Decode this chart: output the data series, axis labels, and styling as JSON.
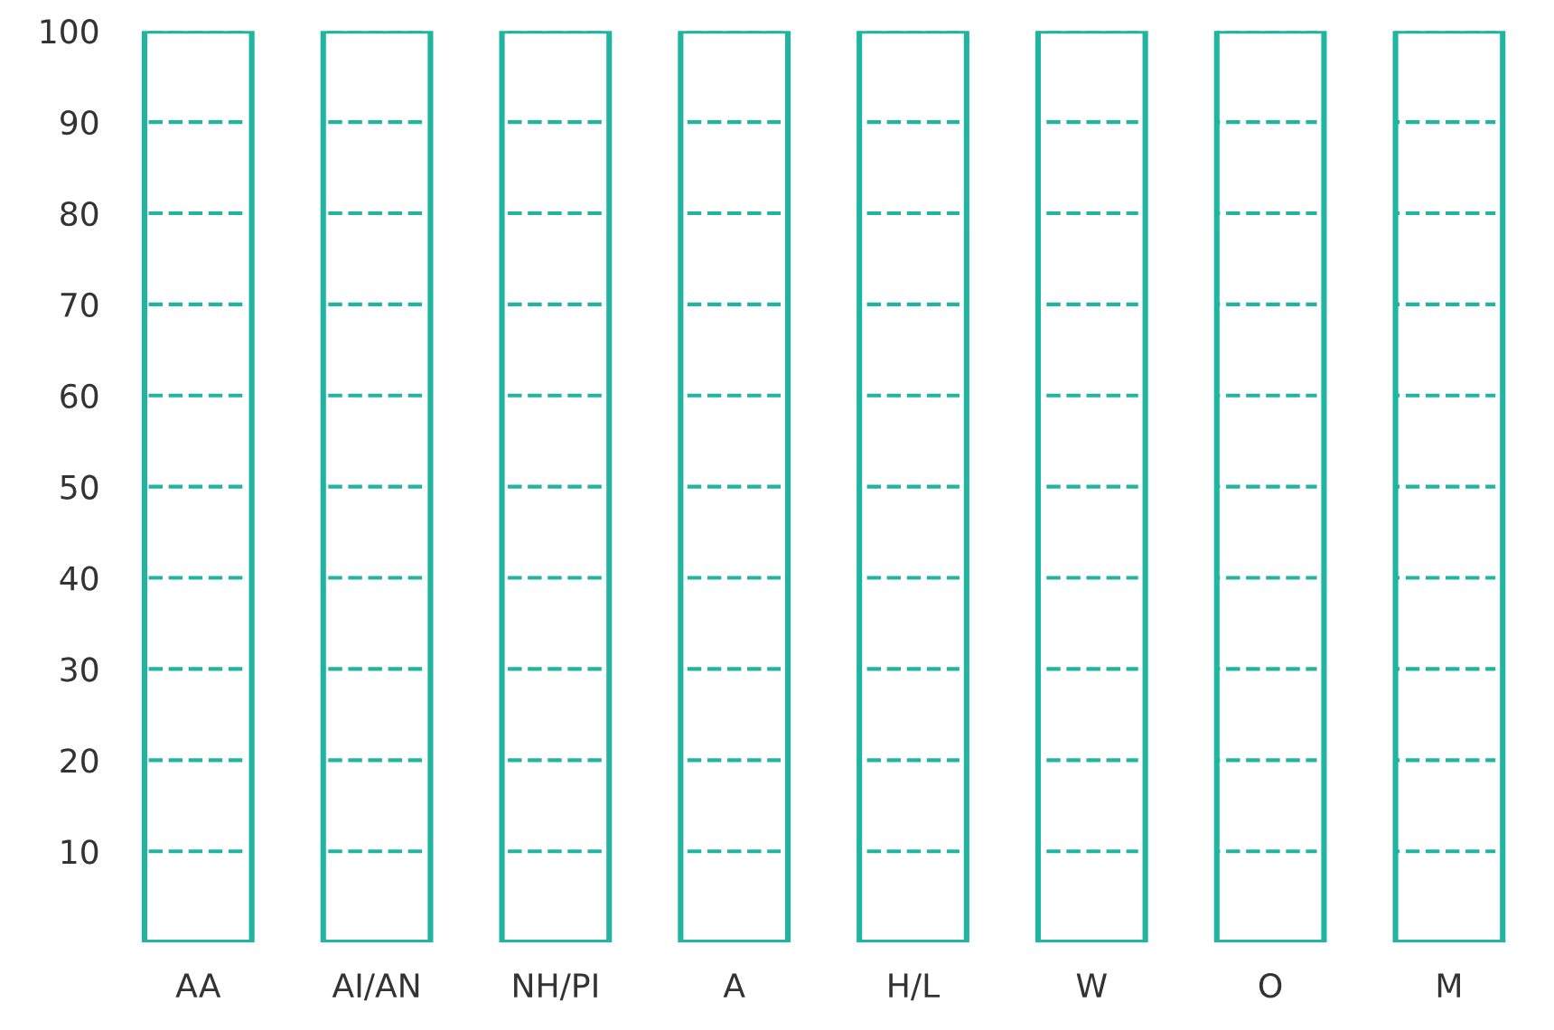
{
  "chart_data": {
    "type": "bar",
    "categories": [
      "AA",
      "AI/AN",
      "NH/PI",
      "A",
      "H/L",
      "W",
      "O",
      "M"
    ],
    "values": [
      100,
      100,
      100,
      100,
      100,
      100,
      100,
      100
    ],
    "color": "#1fb5a0",
    "ylim": [
      0,
      100
    ],
    "yticks": [
      10,
      20,
      30,
      40,
      50,
      60,
      70,
      80,
      90,
      100
    ],
    "grid": "y"
  }
}
